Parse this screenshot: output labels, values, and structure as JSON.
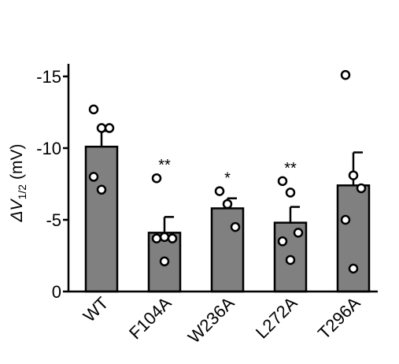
{
  "chart_data": {
    "type": "bar",
    "ylabel": "ΔV",
    "ylabel_sub": "1/2",
    "ylabel_unit": "(mV)",
    "ylim": [
      0,
      -16
    ],
    "yticks": [
      0,
      -5,
      -10,
      -15
    ],
    "ytick_labels": [
      "0",
      "-5",
      "-10",
      "-15"
    ],
    "categories": [
      "WT",
      "F104A",
      "W236A",
      "L272A",
      "T296A"
    ],
    "values": [
      -10.1,
      -4.1,
      -5.8,
      -4.8,
      -7.4
    ],
    "errors": [
      1.1,
      1.1,
      0.7,
      1.1,
      2.3
    ],
    "points": [
      [
        -12.7,
        -11.4,
        -11.4,
        -8.0,
        -7.1
      ],
      [
        -7.9,
        -3.8,
        -3.7,
        -3.7,
        -2.1
      ],
      [
        -7.0,
        -6.1,
        -4.5
      ],
      [
        -7.7,
        -6.9,
        -4.1,
        -3.5,
        -2.2
      ],
      [
        -15.1,
        -8.1,
        -7.2,
        -5.0,
        -1.6
      ]
    ],
    "significance": [
      "",
      "**",
      "*",
      "**",
      ""
    ],
    "colors": {
      "bar": "#808080",
      "outline": "#000000",
      "point_fill": "#ffffff"
    }
  }
}
